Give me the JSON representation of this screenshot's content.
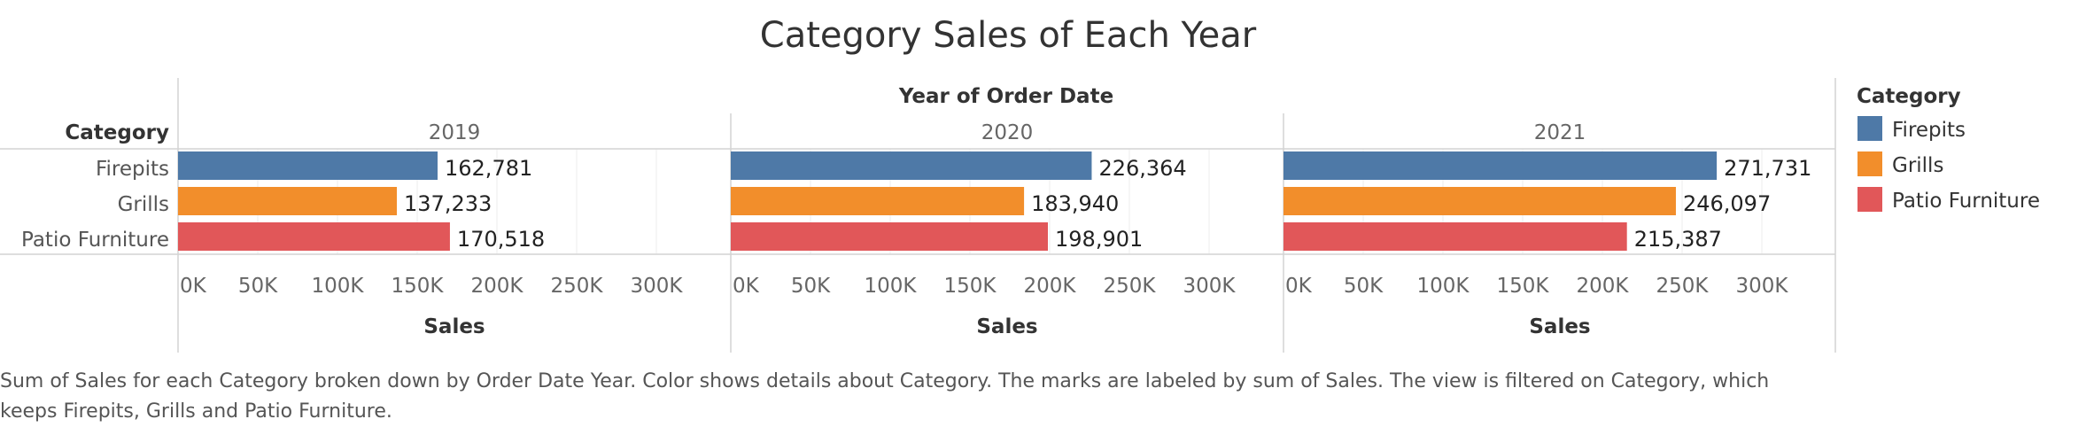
{
  "chart_data": {
    "type": "bar",
    "orientation": "horizontal",
    "title": "Category Sales of Each Year",
    "column_header": "Year of Order Date",
    "row_header": "Category",
    "xlabel": "Sales",
    "xlim": [
      0,
      330000
    ],
    "xticks": [
      0,
      50000,
      100000,
      150000,
      200000,
      250000,
      300000
    ],
    "xtick_labels": [
      "0K",
      "50K",
      "100K",
      "150K",
      "200K",
      "250K",
      "300K"
    ],
    "categories": [
      "Firepits",
      "Grills",
      "Patio Furniture"
    ],
    "colors": {
      "Firepits": "#4e79a7",
      "Grills": "#f28e2b",
      "Patio Furniture": "#e15759"
    },
    "panels": [
      {
        "year": "2019",
        "values": [
          162781,
          137233,
          170518
        ],
        "labels": [
          "162,781",
          "137,233",
          "170,518"
        ]
      },
      {
        "year": "2020",
        "values": [
          226364,
          183940,
          198901
        ],
        "labels": [
          "226,364",
          "183,940",
          "198,901"
        ]
      },
      {
        "year": "2021",
        "values": [
          271731,
          246097,
          215387
        ],
        "labels": [
          "271,731",
          "246,097",
          "215,387"
        ]
      }
    ],
    "grid": true,
    "legend": {
      "title": "Category",
      "position": "right",
      "items": [
        "Firepits",
        "Grills",
        "Patio Furniture"
      ]
    }
  },
  "caption": "Sum of Sales for each Category broken down by Order Date Year.  Color shows details about Category.  The marks are labeled by sum of Sales. The view is filtered on Category, which keeps Firepits, Grills and Patio Furniture."
}
